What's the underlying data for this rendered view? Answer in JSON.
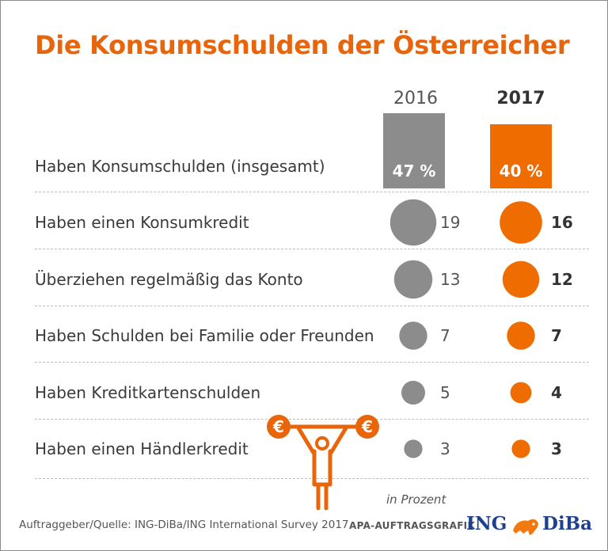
{
  "title": "Die Konsumschulden der Österreicher",
  "years": [
    "2016",
    "2017"
  ],
  "chart_data": {
    "type": "bubble-table",
    "title": "Die Konsumschulden der Österreicher",
    "unit": "in Prozent",
    "series_names": [
      "2016",
      "2017"
    ],
    "total_row": {
      "label": "Haben Konsumschulden (insgesamt)",
      "values": [
        47,
        40
      ],
      "display": [
        "47 %",
        "40 %"
      ]
    },
    "rows": [
      {
        "label": "Haben einen Konsumkredit",
        "values": [
          19,
          16
        ]
      },
      {
        "label": "Überziehen regelmäßig das Konto",
        "values": [
          13,
          12
        ]
      },
      {
        "label": "Haben Schulden bei Familie oder Freunden",
        "values": [
          7,
          7
        ]
      },
      {
        "label": "Haben Kreditkartenschulden",
        "values": [
          5,
          4
        ]
      },
      {
        "label": "Haben einen Händlerkredit",
        "values": [
          3,
          3
        ]
      }
    ],
    "colors": {
      "2016": "#8c8c8c",
      "2017": "#ef6c00"
    }
  },
  "footer": {
    "unit": "in Prozent",
    "source": "Auftraggeber/Quelle: ING-DiBa/ING International Survey 2017",
    "credit": "APA-AUFTRAGSGRAFIK",
    "logo_left": "ING",
    "logo_right": "DiBa"
  },
  "icons": {
    "weightlifter": "weightlifter-euro-icon",
    "lion": "lion-logo-icon"
  },
  "colors": {
    "accent": "#e8650b",
    "grey": "#8c8c8c",
    "orange": "#ef6c00"
  }
}
